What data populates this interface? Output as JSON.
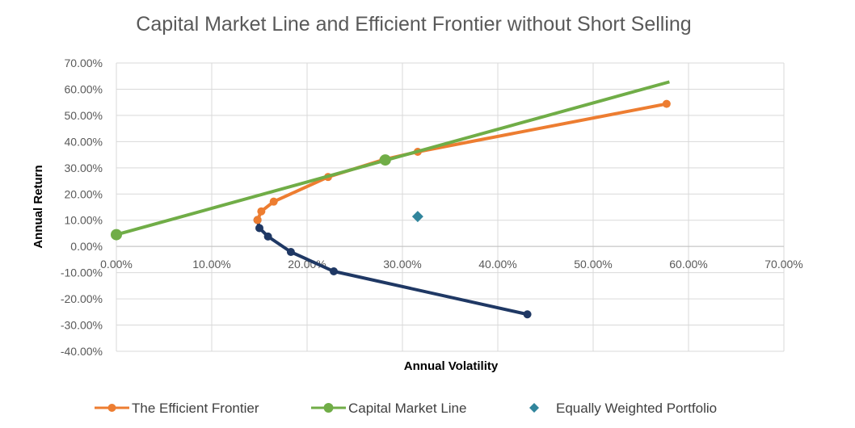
{
  "chart_data": {
    "type": "scatter",
    "title": "Capital Market Line and Efficient Frontier without Short Selling",
    "xlabel": "Annual Volatility",
    "ylabel": "Annual Return",
    "xlim": [
      0,
      70
    ],
    "ylim": [
      -40,
      70
    ],
    "x_ticks": [
      "0.00%",
      "10.00%",
      "20.00%",
      "30.00%",
      "40.00%",
      "50.00%",
      "60.00%",
      "70.00%"
    ],
    "y_ticks": [
      "70.00%",
      "60.00%",
      "50.00%",
      "40.00%",
      "30.00%",
      "20.00%",
      "10.00%",
      "0.00%",
      "-10.00%",
      "-20.00%",
      "-30.00%",
      "-40.00%"
    ],
    "grid": true,
    "legend_position": "bottom",
    "series": [
      {
        "name": "The Efficient Frontier",
        "color": "#ED7D31",
        "points": [
          [
            14.8,
            10.1
          ],
          [
            15.2,
            13.4
          ],
          [
            16.5,
            17.1
          ],
          [
            22.2,
            26.5
          ],
          [
            28.0,
            33.1
          ],
          [
            31.6,
            36.1
          ],
          [
            57.7,
            54.4
          ]
        ]
      },
      {
        "color": "#1F3864",
        "points": [
          [
            14.8,
            10.1
          ],
          [
            15.0,
            7.0
          ],
          [
            15.9,
            3.8
          ],
          [
            18.3,
            -2.1
          ],
          [
            22.8,
            -9.5
          ],
          [
            43.1,
            -25.9
          ]
        ]
      },
      {
        "name": "Capital Market Line",
        "color": "#70AD47",
        "line": [
          [
            0.0,
            4.5
          ],
          [
            58.0,
            62.8
          ]
        ],
        "markers": [
          [
            0.0,
            4.5
          ],
          [
            28.2,
            33.0
          ]
        ]
      },
      {
        "name": "Equally Weighted Portfolio",
        "color": "#31859C",
        "points": [
          [
            31.6,
            11.4
          ]
        ]
      }
    ]
  }
}
